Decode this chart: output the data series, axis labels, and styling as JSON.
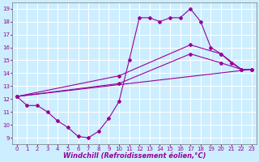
{
  "background_color": "#cceeff",
  "grid_color": "#ffffff",
  "line_color": "#990099",
  "xlim": [
    -0.5,
    23.5
  ],
  "ylim": [
    8.5,
    19.5
  ],
  "xticks": [
    0,
    1,
    2,
    3,
    4,
    5,
    6,
    7,
    8,
    9,
    10,
    11,
    12,
    13,
    14,
    15,
    16,
    17,
    18,
    19,
    20,
    21,
    22,
    23
  ],
  "yticks": [
    9,
    10,
    11,
    12,
    13,
    14,
    15,
    16,
    17,
    18,
    19
  ],
  "line1_x": [
    0,
    1,
    2,
    3,
    4,
    5,
    6,
    7,
    8,
    9,
    10,
    11,
    12,
    13,
    14,
    15,
    16,
    17,
    18,
    19,
    20,
    21,
    22,
    23
  ],
  "line1_y": [
    12.2,
    11.5,
    11.5,
    11.0,
    10.3,
    9.8,
    9.1,
    9.0,
    9.5,
    10.5,
    11.8,
    15.0,
    18.3,
    18.3,
    18.0,
    18.3,
    18.3,
    19.0,
    18.0,
    16.0,
    15.5,
    14.8,
    14.3,
    14.3
  ],
  "line2_x": [
    0,
    10,
    17,
    20,
    22,
    23
  ],
  "line2_y": [
    12.2,
    13.8,
    16.2,
    15.5,
    14.3,
    14.3
  ],
  "line3_x": [
    0,
    10,
    17,
    20,
    22,
    23
  ],
  "line3_y": [
    12.2,
    13.2,
    15.5,
    14.8,
    14.3,
    14.3
  ],
  "line4_x": [
    0,
    23
  ],
  "line4_y": [
    12.2,
    14.3
  ],
  "marker": "D",
  "markersize": 2.0,
  "linewidth": 0.8,
  "tick_fontsize": 5.0,
  "xlabel_fontsize": 6.0
}
